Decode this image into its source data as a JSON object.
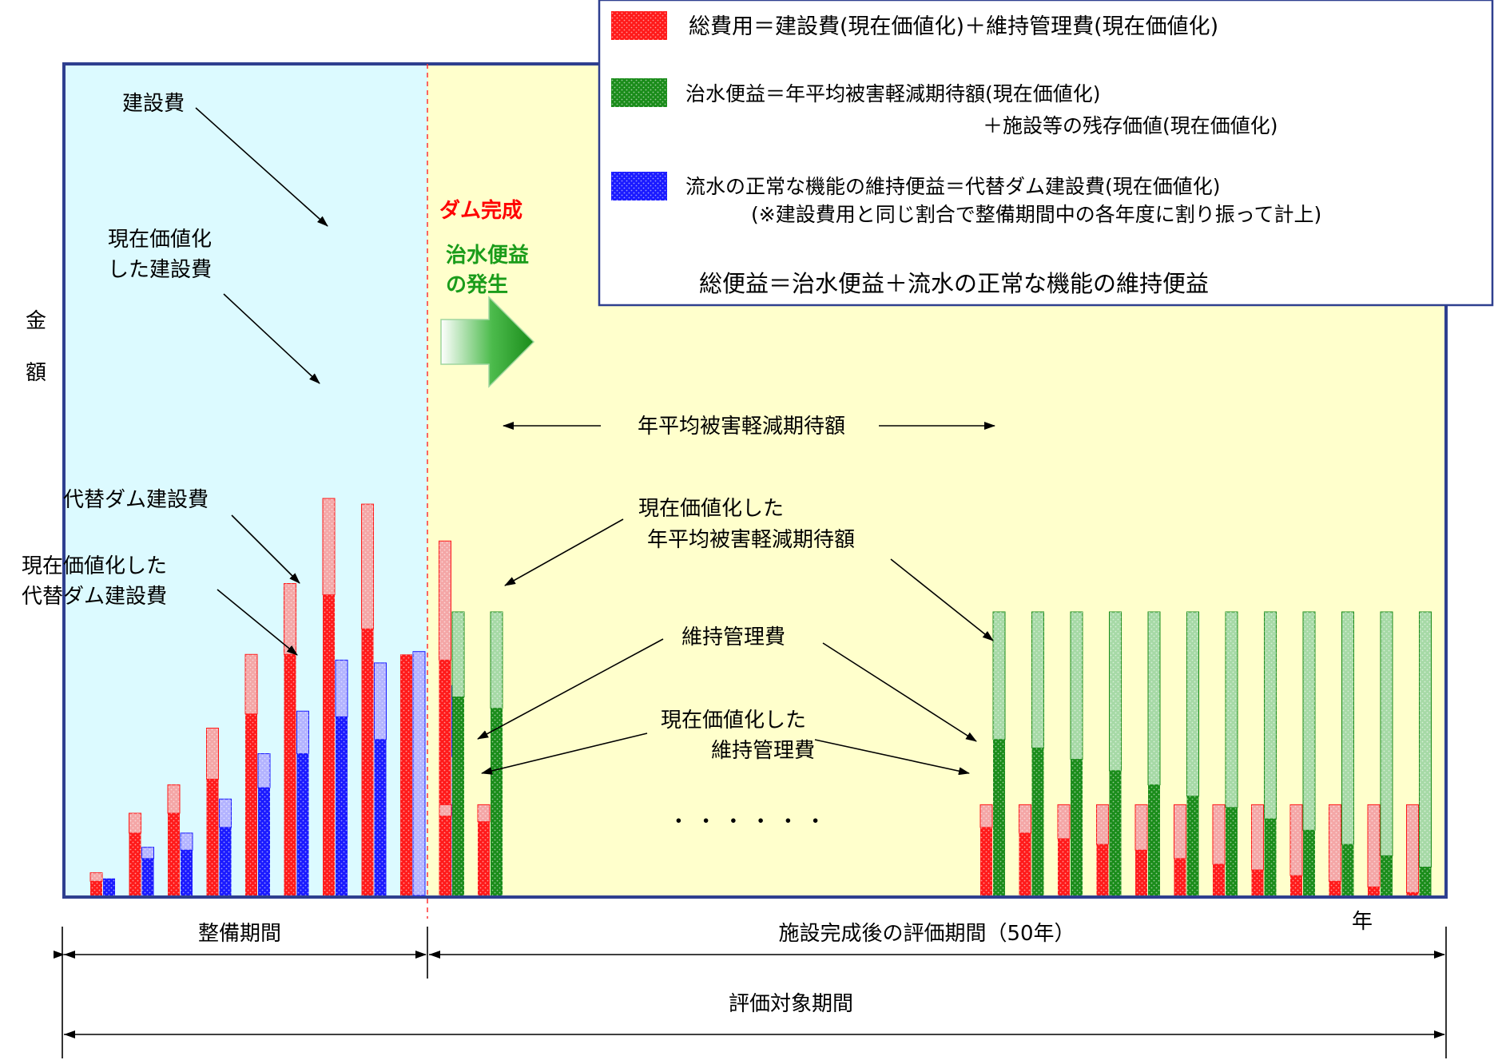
{
  "axis": {
    "y_label_chars": [
      "金",
      "額"
    ],
    "x_label": "年"
  },
  "legend": {
    "cost_line": "総費用＝建設費(現在価値化)＋維持管理費(現在価値化)",
    "flood_line1": "治水便益＝年平均被害軽減期待額(現在価値化)",
    "flood_line2": "＋施設等の残存価値(現在価値化)",
    "water_line1": "流水の正常な機能の維持便益＝代替ダム建設費(現在価値化)",
    "water_line2": "(※建設費用と同じ割合で整備期間中の各年度に割り振って計上)",
    "total_line": "総便益＝治水便益＋流水の正常な機能の維持便益"
  },
  "markers": {
    "dam_complete": "ダム完成",
    "benefit_start_line1": "治水便益",
    "benefit_start_line2": "の発生"
  },
  "annotations": {
    "construction_cost": "建設費",
    "pv_construction_line1": "現在価値化",
    "pv_construction_line2": "した建設費",
    "alt_dam": "代替ダム建設費",
    "pv_alt_line1": "現在価値化した",
    "pv_alt_line2": "代替ダム建設費",
    "annual_damage": "年平均被害軽減期待額",
    "pv_damage_line1": "現在価値化した",
    "pv_damage_line2": "年平均被害軽減期待額",
    "maintenance": "維持管理費",
    "pv_maint_line1": "現在価値化した",
    "pv_maint_line2": "維持管理費",
    "ellipsis": "・ ・ ・ ・ ・ ・"
  },
  "periods": {
    "construction": "整備期間",
    "evaluation": "施設完成後の評価期間（50年）",
    "total": "評価対象期間"
  },
  "colors": {
    "cost_red": "#ff1a1a",
    "cost_light": "#f4a6a6",
    "benefit_green": "#1a8c1a",
    "benefit_light": "#a6d9a6",
    "water_blue": "#1a1aff",
    "water_light": "#b3b3ff",
    "construction_bg": "#dcfaff",
    "evaluation_bg": "#ffffcc",
    "frame_blue": "#2e3f8f"
  },
  "chart_data": {
    "type": "bar",
    "note_x": "years",
    "construction_years": {
      "construction_cost": [
        0.8,
        2.9,
        3.9,
        5.9,
        8.5,
        11.0,
        14.0,
        13.8,
        8.5,
        12.5
      ],
      "construction_cost_pv": [
        0.5,
        2.2,
        2.9,
        4.1,
        6.4,
        8.5,
        10.6,
        9.4,
        8.5,
        8.3
      ],
      "alt_dam_cost": [
        0,
        1.7,
        2.2,
        3.4,
        5.0,
        6.5,
        8.3,
        8.2,
        8.6,
        7.4
      ],
      "alt_dam_cost_pv": [
        0.6,
        1.3,
        1.6,
        2.4,
        3.8,
        5.0,
        6.3,
        5.5,
        0,
        4.9
      ]
    },
    "evaluation_years_shown": {
      "maintenance_cost": [
        3.2,
        3.2,
        3.2,
        3.2,
        3.2,
        3.2,
        3.2,
        3.2,
        3.2,
        3.2,
        3.2,
        3.2,
        3.2,
        3.2
      ],
      "maintenance_cost_pv": [
        2.8,
        2.6,
        2.4,
        2.2,
        2.0,
        1.8,
        1.6,
        1.3,
        1.1,
        0.9,
        0.7,
        0.5,
        0.3,
        0.1
      ],
      "annual_damage_reduction": [
        10.0,
        10.0,
        10.0,
        10.0,
        10.0,
        10.0,
        10.0,
        10.0,
        10.0,
        10.0,
        10.0,
        10.0,
        10.0,
        10.0
      ],
      "annual_damage_reduction_pv": [
        7.0,
        6.6,
        5.5,
        5.2,
        4.8,
        4.4,
        3.9,
        3.5,
        3.1,
        2.7,
        2.3,
        1.8,
        1.4,
        1.0
      ]
    }
  }
}
